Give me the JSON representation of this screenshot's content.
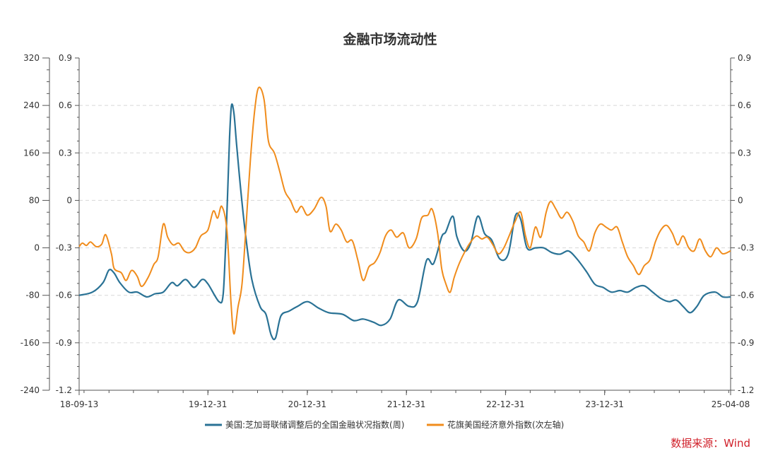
{
  "chart_data": {
    "type": "line",
    "title": "金融市场流动性",
    "source": "数据来源：Wind",
    "legend_position": "bottom",
    "grid": true,
    "y_left": {
      "ylim": [
        -240,
        320
      ],
      "ticks": [
        "320",
        "240",
        "160",
        "80",
        "0",
        "-80",
        "-160",
        "-240"
      ],
      "tick_values": [
        320,
        240,
        160,
        80,
        0,
        -80,
        -160,
        -240
      ]
    },
    "y_right": {
      "ylim": [
        -1.2,
        0.9
      ],
      "ticks": [
        "0.9",
        "0.6",
        "0.3",
        "0",
        "-0.3",
        "-0.6",
        "-0.9",
        "-1.2"
      ],
      "tick_values": [
        0.9,
        0.6,
        0.3,
        0,
        -0.3,
        -0.6,
        -0.9,
        -1.2
      ]
    },
    "x_axis": {
      "xlim": [
        "2018-09-13",
        "2025-04-08"
      ],
      "tick_labels": [
        "18-09-13",
        "19-12-31",
        "20-12-31",
        "21-12-31",
        "22-12-31",
        "23-12-31",
        "25-04-08"
      ],
      "tick_dates": [
        "2018-09-13",
        "2019-12-31",
        "2020-12-31",
        "2021-12-31",
        "2022-12-31",
        "2023-12-31",
        "2025-04-08"
      ]
    },
    "series": [
      {
        "name": "美国:芝加哥联储调整后的全国金融状况指数(周)",
        "axis": "right",
        "color": "#2a7295",
        "points": [
          [
            "2018-09-13",
            -0.6
          ],
          [
            "2018-11-01",
            -0.58
          ],
          [
            "2018-12-10",
            -0.52
          ],
          [
            "2019-01-01",
            -0.44
          ],
          [
            "2019-01-20",
            -0.46
          ],
          [
            "2019-02-10",
            -0.52
          ],
          [
            "2019-03-15",
            -0.58
          ],
          [
            "2019-04-15",
            -0.58
          ],
          [
            "2019-05-20",
            -0.61
          ],
          [
            "2019-06-20",
            -0.59
          ],
          [
            "2019-07-20",
            -0.58
          ],
          [
            "2019-08-20",
            -0.52
          ],
          [
            "2019-09-10",
            -0.54
          ],
          [
            "2019-10-10",
            -0.5
          ],
          [
            "2019-11-10",
            -0.55
          ],
          [
            "2019-12-10",
            -0.5
          ],
          [
            "2020-01-01",
            -0.53
          ],
          [
            "2020-02-10",
            -0.64
          ],
          [
            "2020-02-25",
            -0.6
          ],
          [
            "2020-03-05",
            -0.3
          ],
          [
            "2020-03-12",
            0.0
          ],
          [
            "2020-03-20",
            0.4
          ],
          [
            "2020-03-27",
            0.6
          ],
          [
            "2020-04-05",
            0.55
          ],
          [
            "2020-04-15",
            0.35
          ],
          [
            "2020-05-01",
            0.05
          ],
          [
            "2020-05-20",
            -0.25
          ],
          [
            "2020-06-10",
            -0.5
          ],
          [
            "2020-07-10",
            -0.67
          ],
          [
            "2020-08-01",
            -0.72
          ],
          [
            "2020-08-20",
            -0.85
          ],
          [
            "2020-09-05",
            -0.87
          ],
          [
            "2020-09-25",
            -0.73
          ],
          [
            "2020-10-25",
            -0.7
          ],
          [
            "2020-11-25",
            -0.67
          ],
          [
            "2021-01-01",
            -0.64
          ],
          [
            "2021-02-10",
            -0.68
          ],
          [
            "2021-03-20",
            -0.71
          ],
          [
            "2021-05-10",
            -0.72
          ],
          [
            "2021-06-20",
            -0.76
          ],
          [
            "2021-07-25",
            -0.75
          ],
          [
            "2021-09-01",
            -0.77
          ],
          [
            "2021-10-01",
            -0.79
          ],
          [
            "2021-11-01",
            -0.75
          ],
          [
            "2021-12-01",
            -0.63
          ],
          [
            "2022-01-10",
            -0.67
          ],
          [
            "2022-02-10",
            -0.64
          ],
          [
            "2022-03-15",
            -0.38
          ],
          [
            "2022-04-10",
            -0.4
          ],
          [
            "2022-05-10",
            -0.23
          ],
          [
            "2022-05-25",
            -0.2
          ],
          [
            "2022-06-20",
            -0.1
          ],
          [
            "2022-07-05",
            -0.23
          ],
          [
            "2022-08-01",
            -0.32
          ],
          [
            "2022-08-25",
            -0.27
          ],
          [
            "2022-09-20",
            -0.1
          ],
          [
            "2022-10-15",
            -0.21
          ],
          [
            "2022-11-10",
            -0.25
          ],
          [
            "2022-12-10",
            -0.37
          ],
          [
            "2023-01-10",
            -0.34
          ],
          [
            "2023-02-05",
            -0.1
          ],
          [
            "2023-02-25",
            -0.12
          ],
          [
            "2023-03-20",
            -0.3
          ],
          [
            "2023-04-20",
            -0.3
          ],
          [
            "2023-05-20",
            -0.3
          ],
          [
            "2023-06-20",
            -0.33
          ],
          [
            "2023-07-20",
            -0.34
          ],
          [
            "2023-08-20",
            -0.32
          ],
          [
            "2023-09-20",
            -0.37
          ],
          [
            "2023-10-25",
            -0.45
          ],
          [
            "2023-11-25",
            -0.53
          ],
          [
            "2023-12-25",
            -0.55
          ],
          [
            "2024-01-25",
            -0.58
          ],
          [
            "2024-02-25",
            -0.57
          ],
          [
            "2024-03-25",
            -0.58
          ],
          [
            "2024-04-25",
            -0.55
          ],
          [
            "2024-05-25",
            -0.54
          ],
          [
            "2024-06-25",
            -0.58
          ],
          [
            "2024-07-25",
            -0.62
          ],
          [
            "2024-08-25",
            -0.64
          ],
          [
            "2024-09-20",
            -0.63
          ],
          [
            "2024-10-15",
            -0.67
          ],
          [
            "2024-11-10",
            -0.71
          ],
          [
            "2024-12-05",
            -0.67
          ],
          [
            "2025-01-01",
            -0.6
          ],
          [
            "2025-02-10",
            -0.58
          ],
          [
            "2025-03-10",
            -0.61
          ],
          [
            "2025-04-08",
            -0.61
          ]
        ]
      },
      {
        "name": "花旗美国经济意外指数(次左轴)",
        "axis": "left",
        "color": "#f08c1c",
        "points": [
          [
            "2018-09-13",
            2
          ],
          [
            "2018-09-25",
            8
          ],
          [
            "2018-10-10",
            4
          ],
          [
            "2018-10-25",
            10
          ],
          [
            "2018-11-15",
            2
          ],
          [
            "2018-12-05",
            6
          ],
          [
            "2018-12-20",
            22
          ],
          [
            "2019-01-10",
            -10
          ],
          [
            "2019-01-20",
            -35
          ],
          [
            "2019-02-15",
            -42
          ],
          [
            "2019-03-05",
            -55
          ],
          [
            "2019-03-25",
            -38
          ],
          [
            "2019-04-15",
            -48
          ],
          [
            "2019-05-01",
            -65
          ],
          [
            "2019-05-25",
            -50
          ],
          [
            "2019-06-15",
            -28
          ],
          [
            "2019-07-01",
            -15
          ],
          [
            "2019-07-20",
            40
          ],
          [
            "2019-08-05",
            18
          ],
          [
            "2019-08-25",
            5
          ],
          [
            "2019-09-15",
            8
          ],
          [
            "2019-10-05",
            -5
          ],
          [
            "2019-10-25",
            -8
          ],
          [
            "2019-11-15",
            0
          ],
          [
            "2019-12-05",
            20
          ],
          [
            "2019-12-31",
            30
          ],
          [
            "2020-01-20",
            62
          ],
          [
            "2020-02-05",
            50
          ],
          [
            "2020-02-20",
            70
          ],
          [
            "2020-03-10",
            30
          ],
          [
            "2020-03-25",
            -90
          ],
          [
            "2020-04-05",
            -145
          ],
          [
            "2020-04-20",
            -100
          ],
          [
            "2020-05-05",
            -60
          ],
          [
            "2020-05-20",
            40
          ],
          [
            "2020-06-05",
            150
          ],
          [
            "2020-06-20",
            230
          ],
          [
            "2020-07-05",
            270
          ],
          [
            "2020-07-25",
            250
          ],
          [
            "2020-08-10",
            180
          ],
          [
            "2020-09-01",
            160
          ],
          [
            "2020-09-20",
            130
          ],
          [
            "2020-10-10",
            95
          ],
          [
            "2020-10-30",
            80
          ],
          [
            "2020-11-20",
            60
          ],
          [
            "2020-12-10",
            70
          ],
          [
            "2020-12-31",
            55
          ],
          [
            "2021-01-25",
            65
          ],
          [
            "2021-02-20",
            85
          ],
          [
            "2021-03-10",
            70
          ],
          [
            "2021-03-25",
            28
          ],
          [
            "2021-04-15",
            40
          ],
          [
            "2021-05-05",
            30
          ],
          [
            "2021-05-25",
            10
          ],
          [
            "2021-06-15",
            12
          ],
          [
            "2021-07-05",
            -20
          ],
          [
            "2021-07-25",
            -55
          ],
          [
            "2021-08-15",
            -32
          ],
          [
            "2021-09-05",
            -25
          ],
          [
            "2021-09-25",
            -8
          ],
          [
            "2021-10-15",
            20
          ],
          [
            "2021-11-05",
            30
          ],
          [
            "2021-11-25",
            18
          ],
          [
            "2021-12-20",
            25
          ],
          [
            "2022-01-10",
            0
          ],
          [
            "2022-02-05",
            15
          ],
          [
            "2022-02-25",
            50
          ],
          [
            "2022-03-20",
            55
          ],
          [
            "2022-04-05",
            65
          ],
          [
            "2022-04-25",
            25
          ],
          [
            "2022-05-10",
            -35
          ],
          [
            "2022-05-25",
            -60
          ],
          [
            "2022-06-10",
            -75
          ],
          [
            "2022-06-25",
            -50
          ],
          [
            "2022-07-15",
            -25
          ],
          [
            "2022-08-05",
            -5
          ],
          [
            "2022-08-25",
            10
          ],
          [
            "2022-09-15",
            20
          ],
          [
            "2022-10-05",
            15
          ],
          [
            "2022-10-25",
            18
          ],
          [
            "2022-11-15",
            5
          ],
          [
            "2022-12-05",
            -10
          ],
          [
            "2022-12-25",
            0
          ],
          [
            "2023-01-15",
            22
          ],
          [
            "2023-02-05",
            45
          ],
          [
            "2023-02-25",
            60
          ],
          [
            "2023-03-15",
            20
          ],
          [
            "2023-04-01",
            0
          ],
          [
            "2023-04-20",
            35
          ],
          [
            "2023-05-10",
            18
          ],
          [
            "2023-05-30",
            60
          ],
          [
            "2023-06-15",
            78
          ],
          [
            "2023-07-05",
            65
          ],
          [
            "2023-07-25",
            50
          ],
          [
            "2023-08-15",
            60
          ],
          [
            "2023-09-05",
            45
          ],
          [
            "2023-09-25",
            20
          ],
          [
            "2023-10-15",
            10
          ],
          [
            "2023-11-05",
            -5
          ],
          [
            "2023-11-25",
            25
          ],
          [
            "2023-12-15",
            40
          ],
          [
            "2024-01-05",
            35
          ],
          [
            "2024-01-25",
            30
          ],
          [
            "2024-02-15",
            35
          ],
          [
            "2024-03-05",
            10
          ],
          [
            "2024-03-25",
            -15
          ],
          [
            "2024-04-15",
            -30
          ],
          [
            "2024-05-05",
            -45
          ],
          [
            "2024-05-25",
            -30
          ],
          [
            "2024-06-15",
            -20
          ],
          [
            "2024-07-05",
            10
          ],
          [
            "2024-07-25",
            30
          ],
          [
            "2024-08-15",
            38
          ],
          [
            "2024-09-05",
            25
          ],
          [
            "2024-09-25",
            5
          ],
          [
            "2024-10-15",
            20
          ],
          [
            "2024-11-05",
            0
          ],
          [
            "2024-11-25",
            -5
          ],
          [
            "2024-12-15",
            15
          ],
          [
            "2025-01-05",
            -5
          ],
          [
            "2025-01-25",
            -15
          ],
          [
            "2025-02-15",
            0
          ],
          [
            "2025-03-10",
            -10
          ],
          [
            "2025-04-08",
            -5
          ]
        ]
      }
    ]
  }
}
